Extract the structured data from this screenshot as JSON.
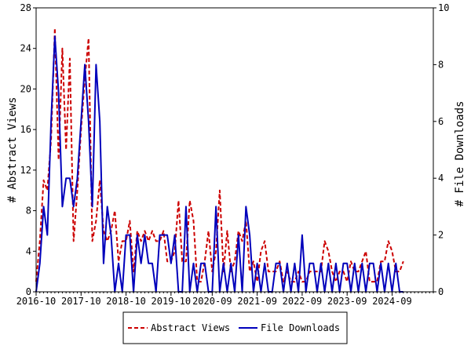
{
  "chart_data": {
    "type": "line",
    "title": "",
    "y_left_label": "# Abstract Views",
    "y_right_label": "# File Downloads",
    "ylim_left": [
      0,
      28
    ],
    "ylim_right": [
      0,
      10
    ],
    "y_left_ticks": [
      "0",
      "4",
      "8",
      "12",
      "16",
      "20",
      "24",
      "28"
    ],
    "y_right_ticks": [
      "0",
      "2",
      "4",
      "6",
      "8",
      "10"
    ],
    "x_labels": [
      {
        "label": "2016-10",
        "month": 0
      },
      {
        "label": "2017-10",
        "month": 12
      },
      {
        "label": "2018-10",
        "month": 24
      },
      {
        "label": "2019-10",
        "month": 36
      },
      {
        "label": "2020-09",
        "month": 47
      },
      {
        "label": "2021-09",
        "month": 59
      },
      {
        "label": "2022-09",
        "month": 71
      },
      {
        "label": "2023-09",
        "month": 83
      },
      {
        "label": "2024-09",
        "month": 95
      }
    ],
    "x_range_months": [
      0,
      106
    ],
    "grid": false,
    "legend_position": "bottom-center",
    "colors": {
      "abstract_views": "#cc0000",
      "file_downloads": "#0000bb"
    },
    "series": [
      {
        "name": "Abstract Views",
        "axis": "left",
        "style": "dashed",
        "values": [
          1,
          5,
          11,
          10,
          15,
          26,
          13,
          24,
          14,
          23,
          5,
          10,
          16,
          21,
          25,
          5,
          7,
          11,
          6,
          5,
          6,
          8,
          3,
          5,
          5,
          7,
          2,
          6,
          5,
          6,
          5,
          6,
          5,
          5,
          6,
          3,
          3,
          4,
          9,
          3,
          3,
          9,
          7,
          1,
          1,
          3,
          6,
          2,
          4,
          10,
          2,
          6,
          2,
          3,
          6,
          5,
          7,
          2,
          3,
          1,
          4,
          5,
          2,
          2,
          2,
          3,
          1,
          2,
          1,
          1,
          2,
          1,
          1,
          2,
          2,
          2,
          2,
          5,
          4,
          2,
          1,
          2,
          2,
          1,
          3,
          2,
          2,
          3,
          4,
          1,
          1,
          1,
          3,
          3,
          5,
          4,
          2,
          2,
          3
        ]
      },
      {
        "name": "File Downloads",
        "axis": "right",
        "style": "solid",
        "values": [
          0,
          1,
          3,
          2,
          6,
          9,
          7,
          3,
          4,
          4,
          3,
          4,
          6,
          8,
          6,
          3,
          8,
          6,
          1,
          3,
          2,
          0,
          1,
          0,
          2,
          2,
          0,
          2,
          1,
          2,
          1,
          1,
          0,
          2,
          2,
          2,
          1,
          2,
          0,
          0,
          3,
          0,
          1,
          0,
          1,
          1,
          0,
          0,
          3,
          0,
          1,
          0,
          1,
          0,
          2,
          0,
          3,
          2,
          0,
          1,
          0,
          1,
          0,
          0,
          1,
          1,
          0,
          1,
          0,
          1,
          0,
          2,
          0,
          1,
          1,
          0,
          1,
          0,
          1,
          0,
          1,
          0,
          1,
          1,
          0,
          1,
          0,
          1,
          0,
          1,
          1,
          0,
          1,
          0,
          1,
          0,
          1,
          0,
          0
        ]
      }
    ]
  }
}
